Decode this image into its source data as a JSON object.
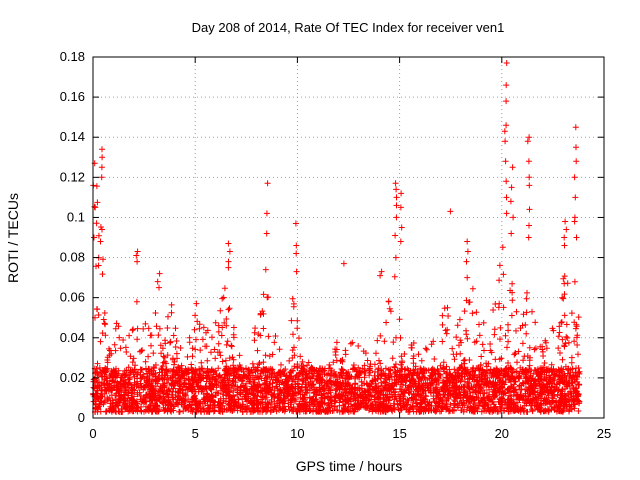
{
  "chart_data": {
    "type": "scatter",
    "title": "Day 208 of 2014, Rate Of TEC Index for receiver ven1",
    "xlabel": "GPS time / hours",
    "ylabel": "ROTI / TECUs",
    "xlim": [
      0,
      25
    ],
    "ylim": [
      0,
      0.18
    ],
    "xticks": [
      0,
      5,
      10,
      15,
      20,
      25
    ],
    "xtick_labels": [
      "0",
      "5",
      "10",
      "15",
      "20",
      "25"
    ],
    "yticks": [
      0,
      0.02,
      0.04,
      0.06,
      0.08,
      0.1,
      0.12,
      0.14,
      0.16,
      0.18
    ],
    "ytick_labels": [
      "0",
      "0.02",
      "0.04",
      "0.06",
      "0.08",
      "0.1",
      "0.12",
      "0.14",
      "0.16",
      "0.18"
    ],
    "grid": true,
    "marker": "+",
    "color": "#ff0000",
    "series": [
      {
        "name": "ROTI",
        "x_range": [
          0,
          23.8
        ],
        "baseline_range": [
          0.003,
          0.025
        ],
        "envelope": [
          [
            0.0,
            0.06
          ],
          [
            0.1,
            0.13
          ],
          [
            0.3,
            0.135
          ],
          [
            0.6,
            0.05
          ],
          [
            1.0,
            0.04
          ],
          [
            1.2,
            0.05
          ],
          [
            1.6,
            0.035
          ],
          [
            2.0,
            0.05
          ],
          [
            2.1,
            0.083
          ],
          [
            2.3,
            0.045
          ],
          [
            2.8,
            0.05
          ],
          [
            3.1,
            0.07
          ],
          [
            3.5,
            0.04
          ],
          [
            3.8,
            0.06
          ],
          [
            4.2,
            0.05
          ],
          [
            4.6,
            0.04
          ],
          [
            5.0,
            0.065
          ],
          [
            5.3,
            0.05
          ],
          [
            5.8,
            0.04
          ],
          [
            6.3,
            0.06
          ],
          [
            6.6,
            0.085
          ],
          [
            7.0,
            0.04
          ],
          [
            7.5,
            0.03
          ],
          [
            8.0,
            0.05
          ],
          [
            8.4,
            0.075
          ],
          [
            8.6,
            0.06
          ],
          [
            9.0,
            0.04
          ],
          [
            9.5,
            0.03
          ],
          [
            9.8,
            0.075
          ],
          [
            10.2,
            0.03
          ],
          [
            11.0,
            0.025
          ],
          [
            11.5,
            0.03
          ],
          [
            12.0,
            0.045
          ],
          [
            12.5,
            0.04
          ],
          [
            13.0,
            0.05
          ],
          [
            13.5,
            0.035
          ],
          [
            14.0,
            0.04
          ],
          [
            14.5,
            0.06
          ],
          [
            14.8,
            0.08
          ],
          [
            15.2,
            0.035
          ],
          [
            15.8,
            0.04
          ],
          [
            16.3,
            0.035
          ],
          [
            16.8,
            0.04
          ],
          [
            17.3,
            0.06
          ],
          [
            17.8,
            0.05
          ],
          [
            18.3,
            0.06
          ],
          [
            18.8,
            0.075
          ],
          [
            19.3,
            0.05
          ],
          [
            19.8,
            0.065
          ],
          [
            20.1,
            0.1
          ],
          [
            20.3,
            0.09
          ],
          [
            20.6,
            0.06
          ],
          [
            21.0,
            0.05
          ],
          [
            21.3,
            0.07
          ],
          [
            21.6,
            0.05
          ],
          [
            22.0,
            0.035
          ],
          [
            22.5,
            0.05
          ],
          [
            23.0,
            0.075
          ],
          [
            23.3,
            0.065
          ],
          [
            23.6,
            0.08
          ],
          [
            23.8,
            0.05
          ]
        ],
        "spikes": [
          {
            "x": 0.05,
            "values": [
              0.127,
              0.116,
              0.105,
              0.09
            ]
          },
          {
            "x": 0.4,
            "values": [
              0.134,
              0.13,
              0.125,
              0.12,
              0.094,
              0.088
            ]
          },
          {
            "x": 2.15,
            "values": [
              0.083,
              0.081,
              0.078
            ]
          },
          {
            "x": 3.2,
            "values": [
              0.072,
              0.068,
              0.065
            ]
          },
          {
            "x": 6.65,
            "values": [
              0.087,
              0.083,
              0.078,
              0.075
            ]
          },
          {
            "x": 8.5,
            "values": [
              0.117,
              0.102,
              0.092,
              0.074
            ]
          },
          {
            "x": 9.95,
            "values": [
              0.097,
              0.086,
              0.082,
              0.073
            ]
          },
          {
            "x": 12.3,
            "values": [
              0.077
            ]
          },
          {
            "x": 14.1,
            "values": [
              0.073,
              0.071
            ]
          },
          {
            "x": 14.8,
            "values": [
              0.117,
              0.114,
              0.11,
              0.106,
              0.1,
              0.091,
              0.08
            ]
          },
          {
            "x": 15.1,
            "values": [
              0.112,
              0.105,
              0.095,
              0.088
            ]
          },
          {
            "x": 17.5,
            "values": [
              0.103
            ]
          },
          {
            "x": 18.3,
            "values": [
              0.088,
              0.083,
              0.078,
              0.07
            ]
          },
          {
            "x": 20.2,
            "values": [
              0.177,
              0.166,
              0.158,
              0.146,
              0.143,
              0.138,
              0.128,
              0.118,
              0.11,
              0.102
            ]
          },
          {
            "x": 20.5,
            "values": [
              0.125,
              0.115,
              0.108,
              0.1,
              0.092
            ]
          },
          {
            "x": 21.3,
            "values": [
              0.14,
              0.138,
              0.128,
              0.12,
              0.116,
              0.104,
              0.096,
              0.09
            ]
          },
          {
            "x": 23.1,
            "values": [
              0.098,
              0.094,
              0.09,
              0.086
            ]
          },
          {
            "x": 23.6,
            "values": [
              0.145,
              0.135,
              0.128,
              0.12,
              0.11,
              0.1,
              0.098,
              0.09
            ]
          }
        ]
      }
    ]
  }
}
